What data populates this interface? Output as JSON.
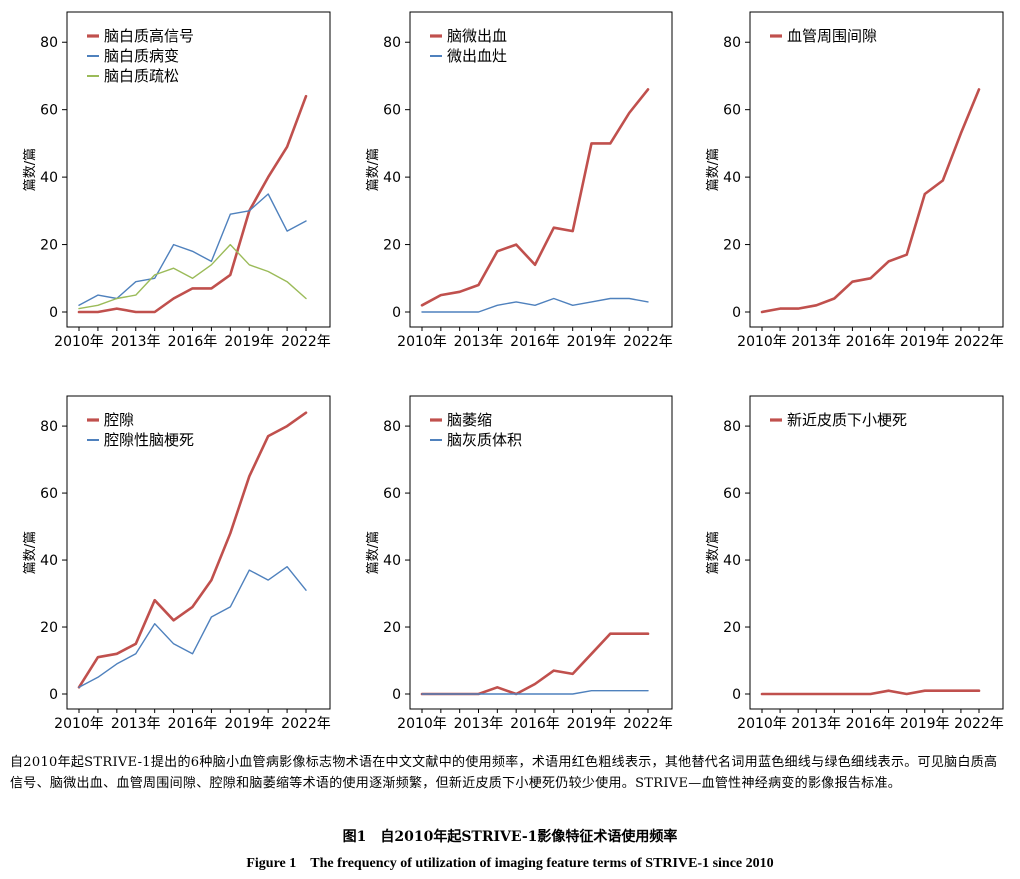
{
  "chart_data": [
    {
      "type": "line",
      "ylabel": "篇数/篇",
      "ylim": [
        0,
        86
      ],
      "yticks": [
        0,
        20,
        40,
        60,
        80
      ],
      "x": [
        2010,
        2011,
        2012,
        2013,
        2014,
        2015,
        2016,
        2017,
        2018,
        2019,
        2020,
        2021,
        2022
      ],
      "xtick_labels": [
        "2010年",
        "2013年",
        "2016年",
        "2019年",
        "2022年"
      ],
      "legend": "top-left",
      "series": [
        {
          "name": "脑白质高信号",
          "color": "#C0504D",
          "width": 2.6,
          "values": [
            0,
            0,
            1,
            0,
            0,
            4,
            7,
            7,
            11,
            30,
            40,
            49,
            64
          ]
        },
        {
          "name": "脑白质病变",
          "color": "#4F81BD",
          "width": 1.4,
          "values": [
            2,
            5,
            4,
            9,
            10,
            20,
            18,
            15,
            29,
            30,
            35,
            24,
            27
          ]
        },
        {
          "name": "脑白质疏松",
          "color": "#9BBB59",
          "width": 1.4,
          "values": [
            1,
            2,
            4,
            5,
            11,
            13,
            10,
            14,
            20,
            14,
            12,
            9,
            4
          ]
        }
      ]
    },
    {
      "type": "line",
      "ylabel": "篇数/篇",
      "ylim": [
        0,
        86
      ],
      "yticks": [
        0,
        20,
        40,
        60,
        80
      ],
      "x": [
        2010,
        2011,
        2012,
        2013,
        2014,
        2015,
        2016,
        2017,
        2018,
        2019,
        2020,
        2021,
        2022
      ],
      "xtick_labels": [
        "2010年",
        "2013年",
        "2016年",
        "2019年",
        "2022年"
      ],
      "legend": "top-left",
      "series": [
        {
          "name": "脑微出血",
          "color": "#C0504D",
          "width": 2.6,
          "values": [
            2,
            5,
            6,
            8,
            18,
            20,
            14,
            25,
            24,
            50,
            50,
            59,
            66
          ]
        },
        {
          "name": "微出血灶",
          "color": "#4F81BD",
          "width": 1.4,
          "values": [
            0,
            0,
            0,
            0,
            2,
            3,
            2,
            4,
            2,
            3,
            4,
            4,
            3
          ]
        }
      ]
    },
    {
      "type": "line",
      "ylabel": "篇数/篇",
      "ylim": [
        0,
        86
      ],
      "yticks": [
        0,
        20,
        40,
        60,
        80
      ],
      "x": [
        2010,
        2011,
        2012,
        2013,
        2014,
        2015,
        2016,
        2017,
        2018,
        2019,
        2020,
        2021,
        2022
      ],
      "xtick_labels": [
        "2010年",
        "2013年",
        "2016年",
        "2019年",
        "2022年"
      ],
      "legend": "top-left",
      "series": [
        {
          "name": "血管周围间隙",
          "color": "#C0504D",
          "width": 2.6,
          "values": [
            0,
            1,
            1,
            2,
            4,
            9,
            10,
            15,
            17,
            35,
            39,
            53,
            66
          ]
        }
      ]
    },
    {
      "type": "line",
      "ylabel": "篇数/篇",
      "ylim": [
        0,
        86
      ],
      "yticks": [
        0,
        20,
        40,
        60,
        80
      ],
      "x": [
        2010,
        2011,
        2012,
        2013,
        2014,
        2015,
        2016,
        2017,
        2018,
        2019,
        2020,
        2021,
        2022
      ],
      "xtick_labels": [
        "2010年",
        "2013年",
        "2016年",
        "2019年",
        "2022年"
      ],
      "legend": "top-left",
      "series": [
        {
          "name": "腔隙",
          "color": "#C0504D",
          "width": 2.6,
          "values": [
            2,
            11,
            12,
            15,
            28,
            22,
            26,
            34,
            48,
            65,
            77,
            80,
            84
          ]
        },
        {
          "name": "腔隙性脑梗死",
          "color": "#4F81BD",
          "width": 1.4,
          "values": [
            2,
            5,
            9,
            12,
            21,
            15,
            12,
            23,
            26,
            37,
            34,
            38,
            31
          ]
        }
      ]
    },
    {
      "type": "line",
      "ylabel": "篇数/篇",
      "ylim": [
        0,
        86
      ],
      "yticks": [
        0,
        20,
        40,
        60,
        80
      ],
      "x": [
        2010,
        2011,
        2012,
        2013,
        2014,
        2015,
        2016,
        2017,
        2018,
        2019,
        2020,
        2021,
        2022
      ],
      "xtick_labels": [
        "2010年",
        "2013年",
        "2016年",
        "2019年",
        "2022年"
      ],
      "legend": "top-left",
      "series": [
        {
          "name": "脑萎缩",
          "color": "#C0504D",
          "width": 2.6,
          "values": [
            0,
            0,
            0,
            0,
            2,
            0,
            3,
            7,
            6,
            12,
            18,
            18,
            18
          ]
        },
        {
          "name": "脑灰质体积",
          "color": "#4F81BD",
          "width": 1.4,
          "values": [
            0,
            0,
            0,
            0,
            0,
            0,
            0,
            0,
            0,
            1,
            1,
            1,
            1
          ]
        }
      ]
    },
    {
      "type": "line",
      "ylabel": "篇数/篇",
      "ylim": [
        0,
        86
      ],
      "yticks": [
        0,
        20,
        40,
        60,
        80
      ],
      "x": [
        2010,
        2011,
        2012,
        2013,
        2014,
        2015,
        2016,
        2017,
        2018,
        2019,
        2020,
        2021,
        2022
      ],
      "xtick_labels": [
        "2010年",
        "2013年",
        "2016年",
        "2019年",
        "2022年"
      ],
      "legend": "top-left",
      "series": [
        {
          "name": "新近皮质下小梗死",
          "color": "#C0504D",
          "width": 2.6,
          "values": [
            0,
            0,
            0,
            0,
            0,
            0,
            0,
            1,
            0,
            1,
            1,
            1,
            1
          ]
        }
      ]
    }
  ],
  "caption": {
    "text": "自2010年起STRIVE-1提出的6种脑小血管病影像标志物术语在中文文献中的使用频率，术语用红色粗线表示，其他替代名词用蓝色细线与绿色细线表示。可见脑白质高信号、脑微出血、血管周围间隙、腔隙和脑萎缩等术语的使用逐渐频繁，但新近皮质下小梗死仍较少使用。STRIVE—血管性神经病变的影像报告标准。",
    "title_cn": "图1　自2010年起STRIVE-1影像特征术语使用频率",
    "title_en": "Figure 1　The frequency of utilization of imaging feature terms of STRIVE-1 since 2010"
  }
}
